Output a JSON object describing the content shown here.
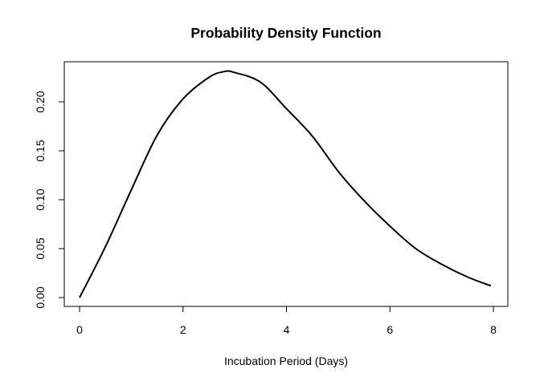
{
  "chart_data": {
    "type": "line",
    "title": "Probability Density Function",
    "xlabel": "Incubation Period (Days)",
    "ylabel": "",
    "xlim": [
      0,
      8
    ],
    "ylim": [
      0,
      0.23
    ],
    "xticks": [
      "0",
      "2",
      "4",
      "6",
      "8"
    ],
    "yticks": [
      "0.00",
      "0.05",
      "0.10",
      "0.15",
      "0.20"
    ],
    "grid": false,
    "line_color": "#000000",
    "x": [
      0,
      0.5,
      1,
      1.5,
      2,
      2.5,
      2.8,
      3,
      3.5,
      4,
      4.5,
      5,
      5.5,
      6,
      6.5,
      7,
      7.5,
      7.95
    ],
    "y": [
      0,
      0.052,
      0.11,
      0.166,
      0.203,
      0.225,
      0.231,
      0.23,
      0.22,
      0.193,
      0.165,
      0.129,
      0.099,
      0.073,
      0.05,
      0.034,
      0.021,
      0.012
    ]
  }
}
